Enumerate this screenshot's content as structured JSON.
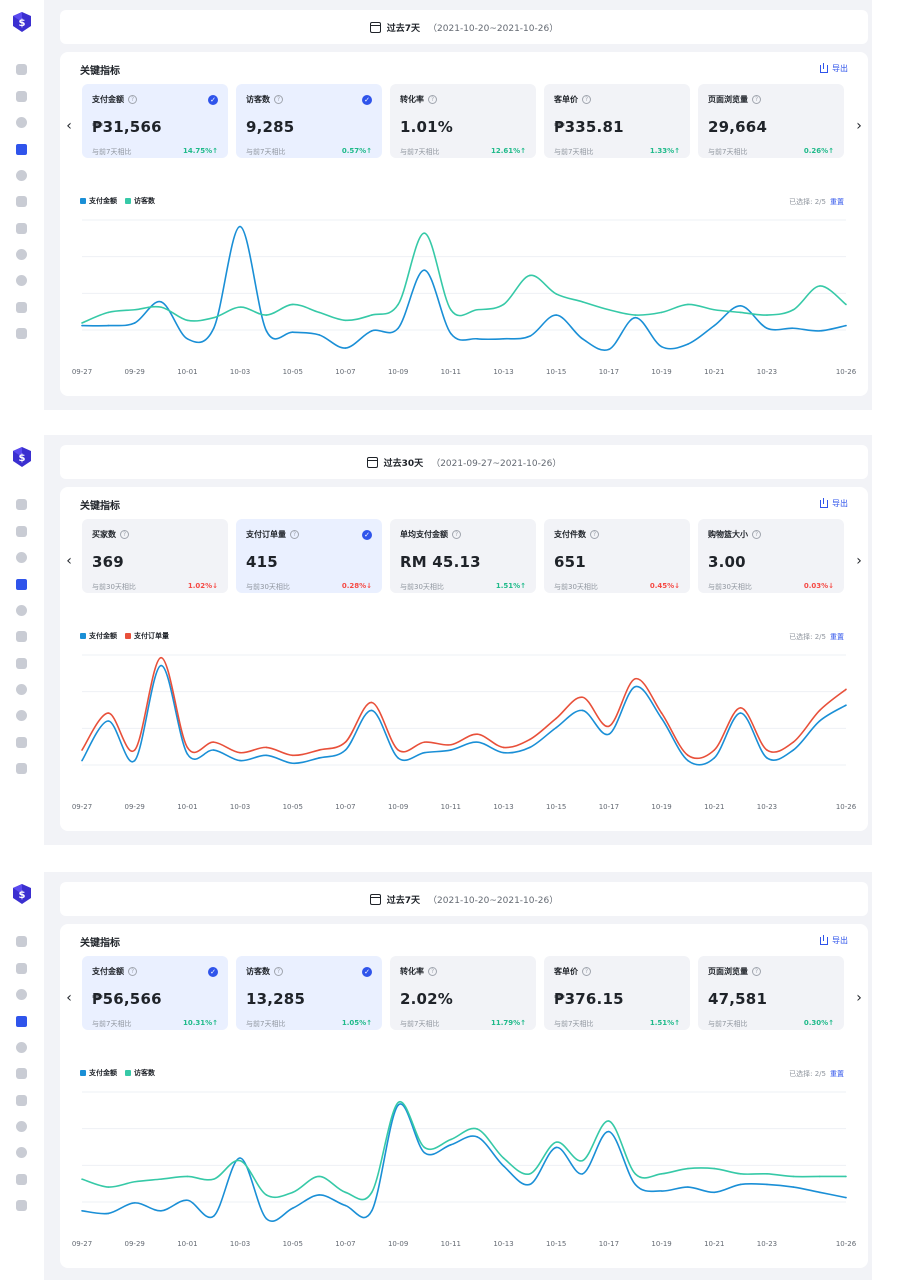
{
  "panels": [
    {
      "date": {
        "label": "过去7天",
        "range": "（2021-10-20~2021-10-26）"
      },
      "title": "关键指标",
      "export": "导出",
      "metrics": [
        {
          "label": "支付金额",
          "value": "₱31,566",
          "compare": "与前7天相比",
          "change": "14.75%↑",
          "direction": "up",
          "selected": true
        },
        {
          "label": "访客数",
          "value": "9,285",
          "compare": "与前7天相比",
          "change": "0.57%↑",
          "direction": "up",
          "selected": true
        },
        {
          "label": "转化率",
          "value": "1.01%",
          "compare": "与前7天相比",
          "change": "12.61%↑",
          "direction": "up",
          "selected": false
        },
        {
          "label": "客单价",
          "value": "₱335.81",
          "compare": "与前7天相比",
          "change": "1.33%↑",
          "direction": "up",
          "selected": false
        },
        {
          "label": "页面浏览量",
          "value": "29,664",
          "compare": "与前7天相比",
          "change": "0.26%↑",
          "direction": "up",
          "selected": false
        }
      ],
      "legend": [
        {
          "name": "支付金额",
          "color": "#1a8fd6"
        },
        {
          "name": "访客数",
          "color": "#36c9a7"
        }
      ],
      "selected_text": "已选择: 2/5",
      "reset_label": "重置",
      "chart_data": {
        "type": "line",
        "x": [
          "09-27",
          "09-28",
          "09-29",
          "09-30",
          "10-01",
          "10-02",
          "10-03",
          "10-04",
          "10-05",
          "10-06",
          "10-07",
          "10-08",
          "10-09",
          "10-10",
          "10-11",
          "10-12",
          "10-13",
          "10-14",
          "10-15",
          "10-16",
          "10-17",
          "10-18",
          "10-19",
          "10-20",
          "10-21",
          "10-22",
          "10-23",
          "10-24",
          "10-25",
          "10-26"
        ],
        "xticks": [
          "09-27",
          "09-29",
          "10-01",
          "10-03",
          "10-05",
          "10-07",
          "10-09",
          "10-11",
          "10-13",
          "10-15",
          "10-17",
          "10-19",
          "10-21",
          "10-23",
          "10-26"
        ],
        "ylim": [
          0,
          100
        ],
        "series": [
          {
            "name": "支付金额",
            "color": "#1a8fd6",
            "values": [
              20,
              20,
              22,
              38,
              10,
              18,
              95,
              16,
              15,
              13,
              3,
              16,
              18,
              62,
              14,
              10,
              10,
              12,
              28,
              10,
              2,
              26,
              4,
              6,
              20,
              35,
              18,
              18,
              16,
              20
            ]
          },
          {
            "name": "访客数",
            "color": "#36c9a7",
            "values": [
              22,
              30,
              32,
              34,
              24,
              26,
              34,
              28,
              36,
              30,
              24,
              28,
              36,
              90,
              32,
              32,
              36,
              58,
              44,
              38,
              32,
              28,
              30,
              36,
              32,
              30,
              28,
              32,
              50,
              36
            ]
          }
        ]
      }
    },
    {
      "date": {
        "label": "过去30天",
        "range": "（2021-09-27~2021-10-26）"
      },
      "title": "关键指标",
      "export": "导出",
      "metrics": [
        {
          "label": "买家数",
          "value": "369",
          "compare": "与前30天相比",
          "change": "1.02%↓",
          "direction": "down",
          "selected": false
        },
        {
          "label": "支付订单量",
          "value": "415",
          "compare": "与前30天相比",
          "change": "0.28%↓",
          "direction": "down",
          "selected": true
        },
        {
          "label": "单均支付金额",
          "value": "RM 45.13",
          "compare": "与前30天相比",
          "change": "1.51%↑",
          "direction": "up",
          "selected": false
        },
        {
          "label": "支付件数",
          "value": "651",
          "compare": "与前30天相比",
          "change": "0.45%↓",
          "direction": "down",
          "selected": false
        },
        {
          "label": "购物篮大小",
          "value": "3.00",
          "compare": "与前30天相比",
          "change": "0.03%↓",
          "direction": "down",
          "selected": false
        }
      ],
      "legend": [
        {
          "name": "支付金额",
          "color": "#1a8fd6"
        },
        {
          "name": "支付订单量",
          "color": "#e8503a"
        }
      ],
      "selected_text": "已选择: 2/5",
      "reset_label": "重置",
      "chart_data": {
        "type": "line",
        "x": [
          "09-27",
          "09-28",
          "09-29",
          "09-30",
          "10-01",
          "10-02",
          "10-03",
          "10-04",
          "10-05",
          "10-06",
          "10-07",
          "10-08",
          "10-09",
          "10-10",
          "10-11",
          "10-12",
          "10-13",
          "10-14",
          "10-15",
          "10-16",
          "10-17",
          "10-18",
          "10-19",
          "10-20",
          "10-21",
          "10-22",
          "10-23",
          "10-24",
          "10-25",
          "10-26"
        ],
        "xticks": [
          "09-27",
          "09-29",
          "10-01",
          "10-03",
          "10-05",
          "10-07",
          "10-09",
          "10-11",
          "10-13",
          "10-15",
          "10-17",
          "10-19",
          "10-21",
          "10-23",
          "10-26"
        ],
        "ylim": [
          0,
          100
        ],
        "series": [
          {
            "name": "支付金额",
            "color": "#1a8fd6",
            "values": [
              20,
              50,
              20,
              92,
              25,
              28,
              20,
              24,
              18,
              22,
              28,
              58,
              22,
              26,
              28,
              34,
              26,
              30,
              45,
              58,
              40,
              76,
              52,
              20,
              22,
              56,
              22,
              28,
              50,
              62
            ]
          },
          {
            "name": "支付订单量",
            "color": "#e8503a",
            "values": [
              28,
              56,
              28,
              98,
              30,
              34,
              26,
              30,
              24,
              28,
              34,
              64,
              28,
              34,
              32,
              40,
              30,
              36,
              52,
              68,
              46,
              82,
              56,
              24,
              28,
              60,
              28,
              34,
              58,
              74
            ]
          }
        ]
      }
    },
    {
      "date": {
        "label": "过去7天",
        "range": "（2021-10-20~2021-10-26）"
      },
      "title": "关键指标",
      "export": "导出",
      "metrics": [
        {
          "label": "支付金额",
          "value": "₱56,566",
          "compare": "与前7天相比",
          "change": "10.31%↑",
          "direction": "up",
          "selected": true
        },
        {
          "label": "访客数",
          "value": "13,285",
          "compare": "与前7天相比",
          "change": "1.05%↑",
          "direction": "up",
          "selected": true
        },
        {
          "label": "转化率",
          "value": "2.02%",
          "compare": "与前7天相比",
          "change": "11.79%↑",
          "direction": "up",
          "selected": false
        },
        {
          "label": "客单价",
          "value": "₱376.15",
          "compare": "与前7天相比",
          "change": "1.51%↑",
          "direction": "up",
          "selected": false
        },
        {
          "label": "页面浏览量",
          "value": "47,581",
          "compare": "与前7天相比",
          "change": "0.30%↑",
          "direction": "up",
          "selected": false
        }
      ],
      "legend": [
        {
          "name": "支付金额",
          "color": "#1a8fd6"
        },
        {
          "name": "访客数",
          "color": "#36c9a7"
        }
      ],
      "selected_text": "已选择: 2/5",
      "reset_label": "重置",
      "chart_data": {
        "type": "line",
        "x": [
          "09-27",
          "09-28",
          "09-29",
          "09-30",
          "10-01",
          "10-02",
          "10-03",
          "10-04",
          "10-05",
          "10-06",
          "10-07",
          "10-08",
          "10-09",
          "10-10",
          "10-11",
          "10-12",
          "10-13",
          "10-14",
          "10-15",
          "10-16",
          "10-17",
          "10-18",
          "10-19",
          "10-20",
          "10-21",
          "10-22",
          "10-23",
          "10-24",
          "10-25",
          "10-26"
        ],
        "xticks": [
          "09-27",
          "09-29",
          "10-01",
          "10-03",
          "10-05",
          "10-07",
          "10-09",
          "10-11",
          "10-13",
          "10-15",
          "10-17",
          "10-19",
          "10-21",
          "10-23",
          "10-26"
        ],
        "ylim": [
          0,
          100
        ],
        "series": [
          {
            "name": "支付金额",
            "color": "#1a8fd6",
            "values": [
              10,
              8,
              16,
              10,
              18,
              6,
              50,
              4,
              12,
              22,
              14,
              10,
              90,
              54,
              60,
              66,
              44,
              30,
              58,
              38,
              70,
              30,
              25,
              28,
              24,
              30,
              30,
              28,
              24,
              20
            ]
          },
          {
            "name": "访客数",
            "color": "#36c9a7",
            "values": [
              34,
              28,
              32,
              34,
              36,
              34,
              48,
              22,
              24,
              36,
              24,
              24,
              92,
              58,
              64,
              72,
              50,
              38,
              62,
              48,
              78,
              38,
              38,
              42,
              42,
              38,
              38,
              36,
              36,
              36
            ]
          }
        ]
      }
    }
  ]
}
